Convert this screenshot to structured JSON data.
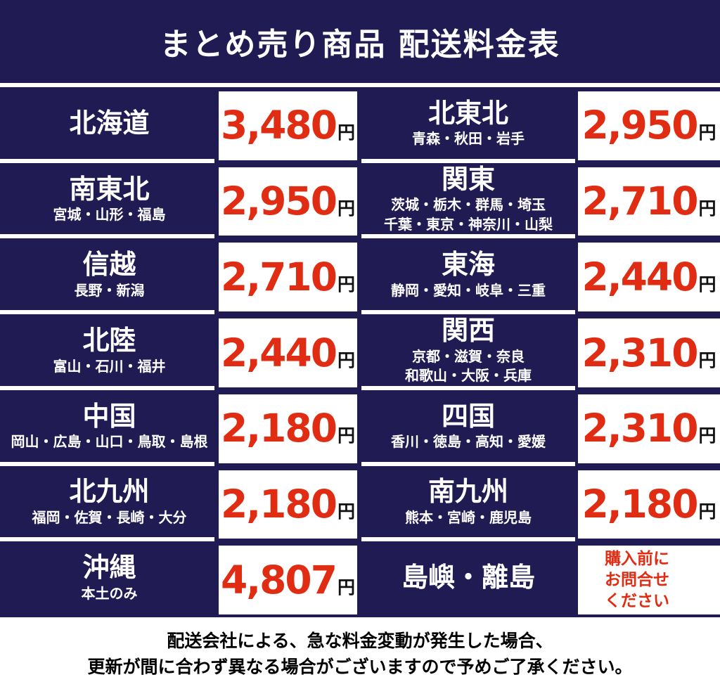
{
  "header": {
    "title": "まとめ売り商品 配送料金表"
  },
  "colors": {
    "background_navy": "#211b54",
    "price_red": "#e02c12",
    "box_white": "#ffffff",
    "unit_black": "#111111"
  },
  "table": {
    "rows": [
      {
        "left": {
          "region": "北海道",
          "subtitle1": "",
          "subtitle2": "",
          "price": "3,480",
          "unit": "円"
        },
        "right": {
          "region": "北東北",
          "subtitle1": "青森・秋田・岩手",
          "subtitle2": "",
          "price": "2,950",
          "unit": "円"
        }
      },
      {
        "left": {
          "region": "南東北",
          "subtitle1": "宮城・山形・福島",
          "subtitle2": "",
          "price": "2,950",
          "unit": "円"
        },
        "right": {
          "region": "関東",
          "subtitle1": "茨城・栃木・群馬・埼玉",
          "subtitle2": "千葉・東京・神奈川・山梨",
          "price": "2,710",
          "unit": "円"
        }
      },
      {
        "left": {
          "region": "信越",
          "subtitle1": "長野・新潟",
          "subtitle2": "",
          "price": "2,710",
          "unit": "円"
        },
        "right": {
          "region": "東海",
          "subtitle1": "静岡・愛知・岐阜・三重",
          "subtitle2": "",
          "price": "2,440",
          "unit": "円"
        }
      },
      {
        "left": {
          "region": "北陸",
          "subtitle1": "富山・石川・福井",
          "subtitle2": "",
          "price": "2,440",
          "unit": "円"
        },
        "right": {
          "region": "関西",
          "subtitle1": "京都・滋賀・奈良",
          "subtitle2": "和歌山・大阪・兵庫",
          "price": "2,310",
          "unit": "円"
        }
      },
      {
        "left": {
          "region": "中国",
          "subtitle1": "岡山・広島・山口・鳥取・島根",
          "subtitle2": "",
          "price": "2,180",
          "unit": "円"
        },
        "right": {
          "region": "四国",
          "subtitle1": "香川・徳島・高知・愛媛",
          "subtitle2": "",
          "price": "2,310",
          "unit": "円"
        }
      },
      {
        "left": {
          "region": "北九州",
          "subtitle1": "福岡・佐賀・長崎・大分",
          "subtitle2": "",
          "price": "2,180",
          "unit": "円"
        },
        "right": {
          "region": "南九州",
          "subtitle1": "熊本・宮崎・鹿児島",
          "subtitle2": "",
          "price": "2,180",
          "unit": "円"
        }
      },
      {
        "left": {
          "region": "沖縄",
          "subtitle1": "本土のみ",
          "subtitle2": "",
          "price": "4,807",
          "unit": "円"
        },
        "right": {
          "region": "島嶼・離島",
          "subtitle1": "",
          "subtitle2": "",
          "note_line1": "購入前に",
          "note_line2": "お問合せ",
          "note_line3": "ください"
        }
      }
    ]
  },
  "footer": {
    "line1": "配送会社による、急な料金変動が発生した場合、",
    "line2": "更新が間に合わず異なる場合がございますので予めご了承ください。"
  },
  "chart_data": {
    "type": "table",
    "title": "まとめ売り商品 配送料金表",
    "columns": [
      "region",
      "prefectures",
      "price_yen"
    ],
    "rows": [
      {
        "region": "北海道",
        "prefectures": "",
        "price_yen": 3480
      },
      {
        "region": "北東北",
        "prefectures": "青森・秋田・岩手",
        "price_yen": 2950
      },
      {
        "region": "南東北",
        "prefectures": "宮城・山形・福島",
        "price_yen": 2950
      },
      {
        "region": "関東",
        "prefectures": "茨城・栃木・群馬・埼玉・千葉・東京・神奈川・山梨",
        "price_yen": 2710
      },
      {
        "region": "信越",
        "prefectures": "長野・新潟",
        "price_yen": 2710
      },
      {
        "region": "東海",
        "prefectures": "静岡・愛知・岐阜・三重",
        "price_yen": 2440
      },
      {
        "region": "北陸",
        "prefectures": "富山・石川・福井",
        "price_yen": 2440
      },
      {
        "region": "関西",
        "prefectures": "京都・滋賀・奈良・和歌山・大阪・兵庫",
        "price_yen": 2310
      },
      {
        "region": "中国",
        "prefectures": "岡山・広島・山口・鳥取・島根",
        "price_yen": 2180
      },
      {
        "region": "四国",
        "prefectures": "香川・徳島・高知・愛媛",
        "price_yen": 2310
      },
      {
        "region": "北九州",
        "prefectures": "福岡・佐賀・長崎・大分",
        "price_yen": 2180
      },
      {
        "region": "南九州",
        "prefectures": "熊本・宮崎・鹿児島",
        "price_yen": 2180
      },
      {
        "region": "沖縄",
        "prefectures": "本土のみ",
        "price_yen": 4807
      },
      {
        "region": "島嶼・離島",
        "prefectures": "",
        "price_yen": null,
        "note": "購入前にお問合せください"
      }
    ],
    "footnote": "配送会社による、急な料金変動が発生した場合、更新が間に合わず異なる場合がございますので予めご了承ください。"
  }
}
